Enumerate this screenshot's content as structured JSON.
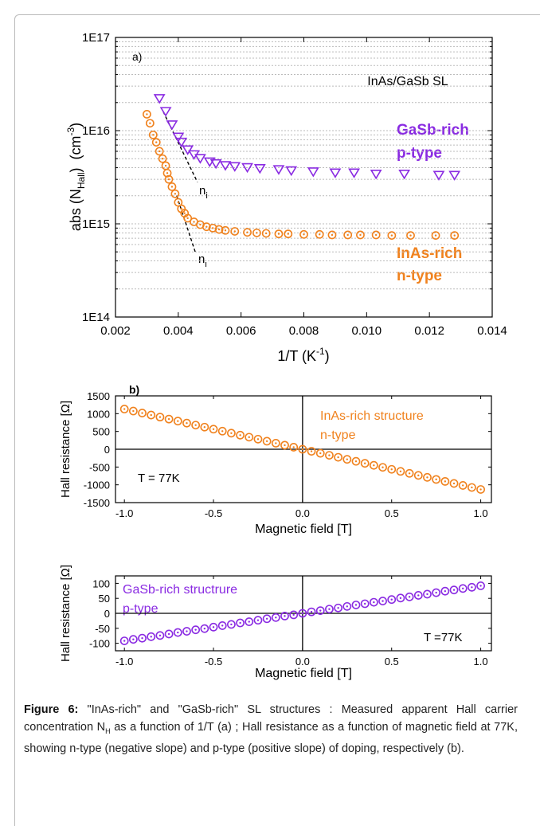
{
  "chart_data": [
    {
      "type": "scatter",
      "ylog": true,
      "xlim": [
        0.002,
        0.014
      ],
      "ylim": [
        100000000000000.0,
        1e+17
      ],
      "xticks": [
        {
          "value": 0.002,
          "label": "0.002"
        },
        {
          "value": 0.004,
          "label": "0.004"
        },
        {
          "value": 0.006,
          "label": "0.006"
        },
        {
          "value": 0.008,
          "label": "0.008"
        },
        {
          "value": 0.01,
          "label": "0.010"
        },
        {
          "value": 0.012,
          "label": "0.012"
        },
        {
          "value": 0.014,
          "label": "0.014"
        }
      ],
      "yticks": [
        {
          "value": 100000000000000.0,
          "label": "1E14"
        },
        {
          "value": 1000000000000000.0,
          "label": "1E15"
        },
        {
          "value": 1e+16,
          "label": "1E16"
        },
        {
          "value": 1e+17,
          "label": "1E17"
        }
      ],
      "yminorticks": [
        200000000000000.0,
        300000000000000.0,
        400000000000000.0,
        500000000000000.0,
        600000000000000.0,
        700000000000000.0,
        800000000000000.0,
        900000000000000.0,
        2000000000000000.0,
        3000000000000000.0,
        4000000000000000.0,
        5000000000000000.0,
        6000000000000000.0,
        7000000000000000.0,
        8000000000000000.0,
        9000000000000000.0,
        2e+16,
        3e+16,
        4e+16,
        5e+16,
        6e+16,
        7e+16,
        8e+16,
        9e+16
      ],
      "grid": true,
      "xlabel": [
        "1/T (K",
        "-1",
        ")"
      ],
      "ylabel": [
        "abs (N",
        "Hall",
        ")  (cm",
        "-3",
        ")"
      ],
      "annotations": [
        "a)",
        "InAs/GaSb SL",
        "GaSb-rich",
        "p-type",
        "InAs-rich",
        "n-type"
      ],
      "series": [
        {
          "marker": "triangle-down",
          "color": "#8a2be2",
          "x": [
            0.0034,
            0.0036,
            0.0038,
            0.004,
            0.0041,
            0.0043,
            0.0045,
            0.0047,
            0.005,
            0.0052,
            0.0055,
            0.0058,
            0.0062,
            0.0066,
            0.0072,
            0.0076,
            0.0083,
            0.009,
            0.0096,
            0.0103,
            0.0112,
            0.0123,
            0.0128
          ],
          "values": [
            2.2e+16,
            1.6e+16,
            1.15e+16,
            8500000000000000.0,
            7500000000000000.0,
            6200000000000000.0,
            5500000000000000.0,
            5000000000000000.0,
            4600000000000000.0,
            4400000000000000.0,
            4200000000000000.0,
            4100000000000000.0,
            4000000000000000.0,
            3900000000000000.0,
            3800000000000000.0,
            3700000000000000.0,
            3600000000000000.0,
            3500000000000000.0,
            3500000000000000.0,
            3400000000000000.0,
            3400000000000000.0,
            3300000000000000.0,
            3300000000000000.0
          ]
        },
        {
          "marker": "circle-dot",
          "color": "#f0821e",
          "x": [
            0.003,
            0.0031,
            0.0032,
            0.0033,
            0.0034,
            0.0035,
            0.0036,
            0.00365,
            0.0037,
            0.0038,
            0.0039,
            0.004,
            0.0041,
            0.0042,
            0.0043,
            0.0045,
            0.0047,
            0.0049,
            0.0051,
            0.0053,
            0.0055,
            0.0058,
            0.0062,
            0.0065,
            0.0068,
            0.0072,
            0.0075,
            0.008,
            0.0085,
            0.0089,
            0.0094,
            0.0098,
            0.0103,
            0.0108,
            0.0114,
            0.0122,
            0.0128
          ],
          "values": [
            1.5e+16,
            1.2e+16,
            9000000000000000.0,
            7500000000000000.0,
            6000000000000000.0,
            5000000000000000.0,
            4200000000000000.0,
            3500000000000000.0,
            3000000000000000.0,
            2500000000000000.0,
            2100000000000000.0,
            1700000000000000.0,
            1450000000000000.0,
            1300000000000000.0,
            1150000000000000.0,
            1050000000000000.0,
            980000000000000.0,
            930000000000000.0,
            900000000000000.0,
            870000000000000.0,
            850000000000000.0,
            830000000000000.0,
            810000000000000.0,
            800000000000000.0,
            790000000000000.0,
            780000000000000.0,
            780000000000000.0,
            770000000000000.0,
            770000000000000.0,
            760000000000000.0,
            760000000000000.0,
            760000000000000.0,
            760000000000000.0,
            750000000000000.0,
            750000000000000.0,
            750000000000000.0,
            750000000000000.0
          ]
        }
      ],
      "fit_lines": [
        {
          "x": [
            0.00352,
            0.00461
          ],
          "values": [
            1.6e+16,
            2800000000000000.0
          ],
          "label": [
            "n",
            "i"
          ]
        },
        {
          "x": [
            0.00395,
            0.00454
          ],
          "values": [
            2000000000000000.0,
            500000000000000.0
          ],
          "label": [
            "n",
            "i"
          ]
        }
      ]
    },
    {
      "type": "scatter",
      "xlim": [
        -1.05,
        1.06
      ],
      "ylim": [
        -1500,
        1500
      ],
      "xticks": [
        {
          "value": -1,
          "label": "-1.0"
        },
        {
          "value": -0.5,
          "label": "-0.5"
        },
        {
          "value": 0,
          "label": "0.0"
        },
        {
          "value": 0.5,
          "label": "0.5"
        },
        {
          "value": 1,
          "label": "1.0"
        }
      ],
      "yticks": [
        -1500,
        -1000,
        -500,
        0,
        500,
        1000,
        1500
      ],
      "zero_lines": true,
      "xlabel": "Magnetic field [T]",
      "ylabel": "Hall resistance [Ω]",
      "annotations": [
        "b)",
        "InAs-rich structure",
        "n-type",
        "T = 77K"
      ],
      "series": [
        {
          "marker": "circle-dot",
          "color": "#f0821e",
          "x": [
            -1,
            -0.95,
            -0.9,
            -0.85,
            -0.8,
            -0.75,
            -0.7,
            -0.65,
            -0.6,
            -0.55,
            -0.5,
            -0.45,
            -0.4,
            -0.35,
            -0.3,
            -0.25,
            -0.2,
            -0.15,
            -0.1,
            -0.05,
            0,
            0.05,
            0.1,
            0.15,
            0.2,
            0.25,
            0.3,
            0.35,
            0.4,
            0.45,
            0.5,
            0.55,
            0.6,
            0.65,
            0.7,
            0.75,
            0.8,
            0.85,
            0.9,
            0.95,
            1
          ],
          "values": [
            1130,
            1074,
            1017,
            961,
            904,
            848,
            791,
            735,
            678,
            622,
            565,
            509,
            452,
            396,
            339,
            283,
            226,
            170,
            113,
            57,
            0,
            -57,
            -113,
            -170,
            -226,
            -283,
            -339,
            -396,
            -452,
            -509,
            -565,
            -622,
            -678,
            -735,
            -791,
            -848,
            -904,
            -961,
            -1017,
            -1074,
            -1130
          ]
        }
      ]
    },
    {
      "type": "scatter",
      "xlim": [
        -1.05,
        1.06
      ],
      "ylim": [
        -125,
        125
      ],
      "xticks": [
        {
          "value": -1,
          "label": "-1.0"
        },
        {
          "value": -0.5,
          "label": "-0.5"
        },
        {
          "value": 0,
          "label": "0.0"
        },
        {
          "value": 0.5,
          "label": "0.5"
        },
        {
          "value": 1,
          "label": "1.0"
        }
      ],
      "yticks": [
        -100,
        -50,
        0,
        50,
        100
      ],
      "zero_lines": true,
      "xlabel": "Magnetic field [T]",
      "ylabel": "Hall resistance [Ω]",
      "annotations": [
        "GaSb-rich structrure",
        "p-type",
        "T =77K"
      ],
      "series": [
        {
          "marker": "circle-dot",
          "color": "#8a2be2",
          "x": [
            -1,
            -0.95,
            -0.9,
            -0.85,
            -0.8,
            -0.75,
            -0.7,
            -0.65,
            -0.6,
            -0.55,
            -0.5,
            -0.45,
            -0.4,
            -0.35,
            -0.3,
            -0.25,
            -0.2,
            -0.15,
            -0.1,
            -0.05,
            0,
            0.05,
            0.1,
            0.15,
            0.2,
            0.25,
            0.3,
            0.35,
            0.4,
            0.45,
            0.5,
            0.55,
            0.6,
            0.65,
            0.7,
            0.75,
            0.8,
            0.85,
            0.9,
            0.95,
            1
          ],
          "values": [
            -92,
            -87,
            -83,
            -78,
            -74,
            -69,
            -64,
            -60,
            -55,
            -51,
            -46,
            -41,
            -37,
            -32,
            -28,
            -23,
            -18,
            -14,
            -9,
            -5,
            0,
            5,
            9,
            14,
            18,
            23,
            28,
            32,
            37,
            41,
            46,
            51,
            55,
            60,
            64,
            69,
            74,
            78,
            83,
            87,
            92
          ]
        }
      ]
    }
  ],
  "caption": {
    "label": "Figure 6:",
    "text": [
      "\"InAs-rich\" and \"GaSb-rich\" SL structures : Measured apparent Hall carrier concentration N",
      "H",
      " as a function of 1/T (a) ; Hall resistance as a function of magnetic field at 77K, showing n-type (negative slope) and p-type (positive slope) of doping, respectively (b)."
    ]
  }
}
